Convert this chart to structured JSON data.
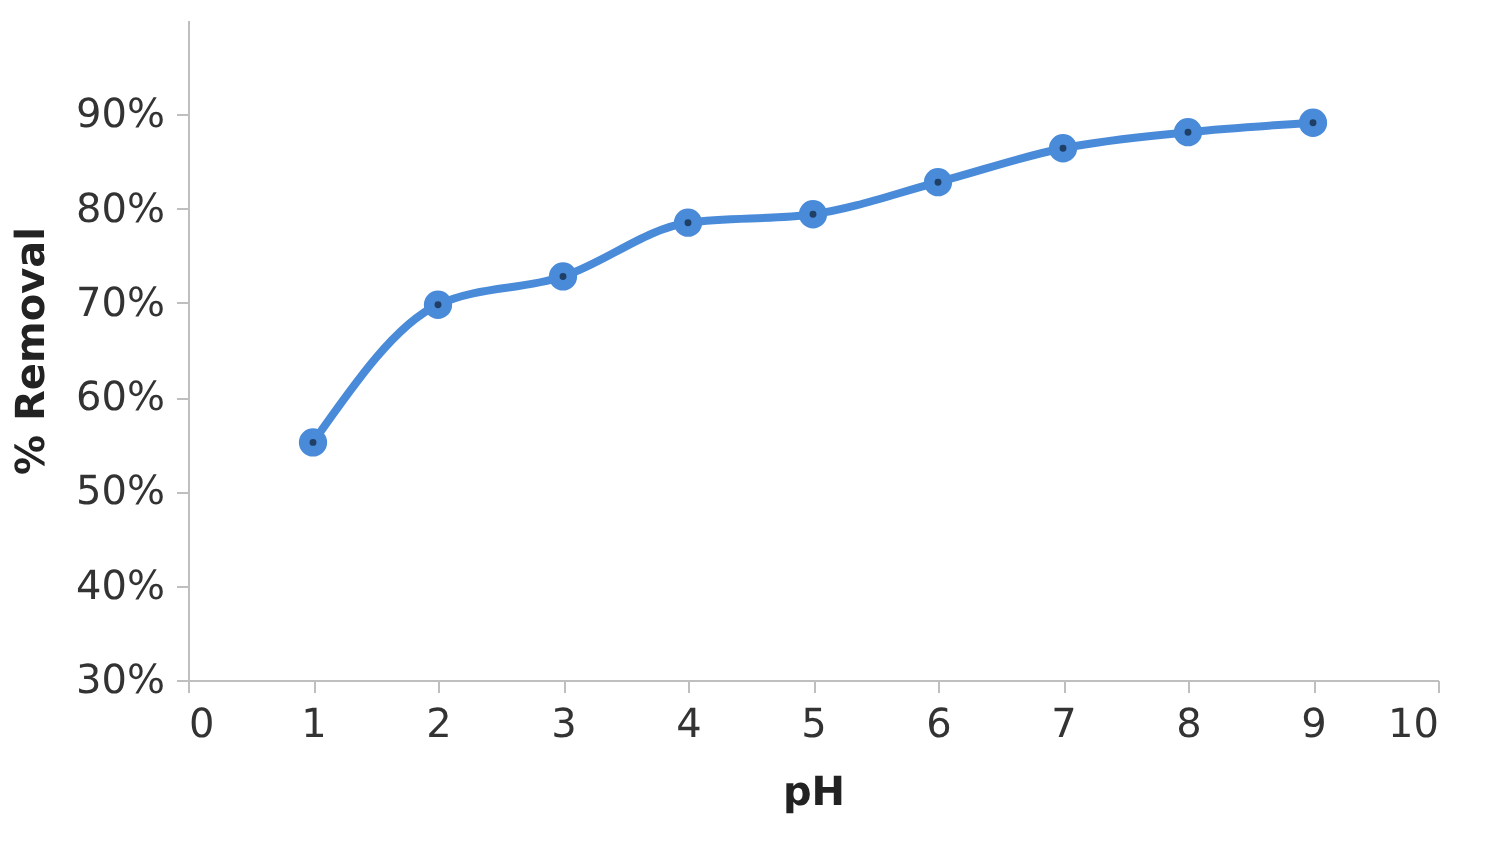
{
  "chart_data": {
    "type": "line",
    "xlabel": "pH",
    "ylabel": "% Removal",
    "x": [
      1,
      2,
      3,
      4,
      5,
      6,
      7,
      8,
      9
    ],
    "series": [
      {
        "color": "#4a8bd9",
        "values": [
          55.2,
          69.8,
          72.8,
          78.5,
          79.4,
          82.8,
          86.4,
          88.1,
          89.1
        ]
      }
    ],
    "xlim": [
      0,
      10
    ],
    "xticks": [
      0,
      1,
      2,
      3,
      4,
      5,
      6,
      7,
      8,
      9,
      10
    ],
    "ylim": [
      30,
      100
    ],
    "yticks": [
      {
        "value": 30,
        "label": "30%"
      },
      {
        "value": 40,
        "label": "40%"
      },
      {
        "value": 50,
        "label": "50%"
      },
      {
        "value": 60,
        "label": "60%"
      },
      {
        "value": 70,
        "label": "70%"
      },
      {
        "value": 80,
        "label": "80%"
      },
      {
        "value": 90,
        "label": "90%"
      }
    ],
    "grid": false,
    "marker": "circle",
    "line_style": "solid"
  }
}
